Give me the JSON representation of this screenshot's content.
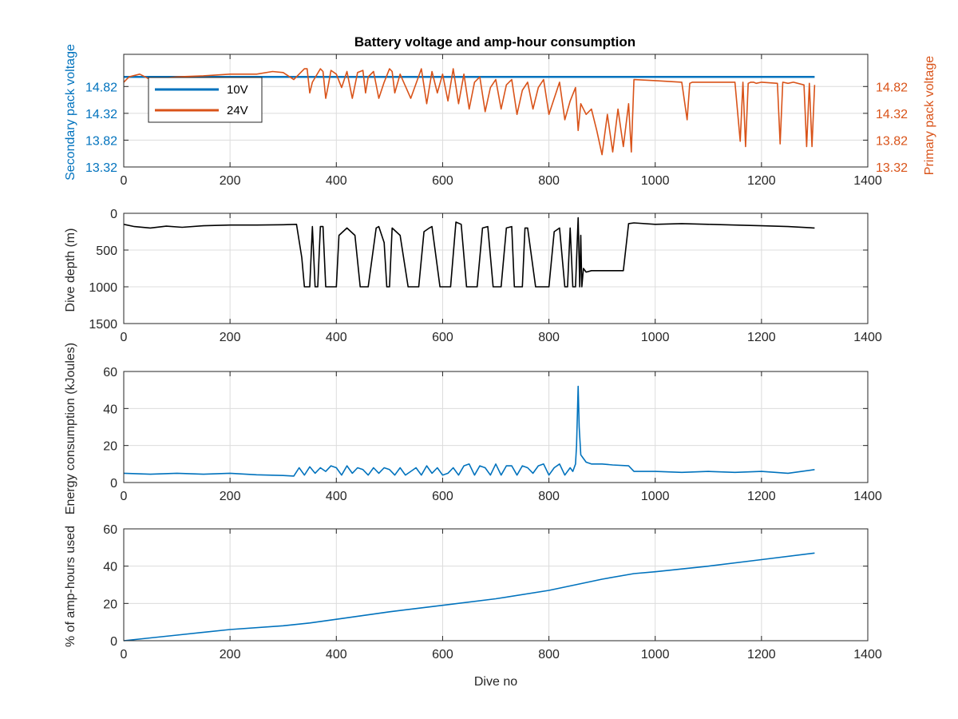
{
  "figure_title": "Battery voltage and amp-hour consumption",
  "chart_data": [
    {
      "type": "line",
      "title": "Battery voltage and amp-hour consumption",
      "xlabel": "",
      "ylabel": "Secondary pack voltage",
      "ylabel_right": "Primary pack voltage",
      "xlim": [
        0,
        1400
      ],
      "ylim": [
        13.32,
        15.42
      ],
      "ylim_right": [
        13.32,
        15.42
      ],
      "xticks": [
        0,
        200,
        400,
        600,
        800,
        1000,
        1200,
        1400
      ],
      "yticks": [
        13.32,
        13.82,
        14.32,
        14.82
      ],
      "yticks_right": [
        13.32,
        13.82,
        14.32,
        14.82
      ],
      "grid": true,
      "legend": {
        "placement": "top-left",
        "entries": [
          "10V",
          "24V"
        ]
      },
      "series": [
        {
          "name": "10V",
          "color": "#0072BD",
          "axis": "left",
          "x": [
            0,
            100,
            200,
            400,
            600,
            800,
            1000,
            1200,
            1300
          ],
          "y": [
            15.0,
            15.0,
            15.0,
            15.0,
            15.0,
            15.0,
            15.0,
            15.0,
            15.0
          ]
        },
        {
          "name": "24V",
          "color": "#D95319",
          "axis": "right",
          "x": [
            0,
            10,
            30,
            50,
            100,
            150,
            200,
            250,
            280,
            300,
            320,
            340,
            345,
            350,
            355,
            370,
            375,
            380,
            385,
            390,
            400,
            410,
            420,
            430,
            440,
            450,
            455,
            460,
            470,
            480,
            490,
            500,
            505,
            510,
            520,
            540,
            560,
            570,
            580,
            590,
            600,
            610,
            620,
            630,
            640,
            650,
            660,
            670,
            680,
            690,
            700,
            710,
            720,
            730,
            740,
            750,
            760,
            770,
            780,
            790,
            800,
            810,
            820,
            830,
            840,
            850,
            855,
            860,
            870,
            880,
            890,
            900,
            910,
            920,
            930,
            940,
            950,
            955,
            960,
            1000,
            1050,
            1060,
            1065,
            1070,
            1100,
            1150,
            1160,
            1165,
            1170,
            1175,
            1180,
            1185,
            1190,
            1200,
            1230,
            1235,
            1240,
            1250,
            1260,
            1280,
            1285,
            1290,
            1295,
            1300
          ],
          "y": [
            14.9,
            15.0,
            15.05,
            14.95,
            15.0,
            15.02,
            15.05,
            15.05,
            15.1,
            15.08,
            14.95,
            15.15,
            15.15,
            14.7,
            14.9,
            15.15,
            15.1,
            14.6,
            14.85,
            15.12,
            15.05,
            14.8,
            15.1,
            14.6,
            15.08,
            15.12,
            14.7,
            15.0,
            15.1,
            14.6,
            14.9,
            15.15,
            15.1,
            14.7,
            15.05,
            14.6,
            15.15,
            14.5,
            15.1,
            14.7,
            15.05,
            14.55,
            15.15,
            14.5,
            15.05,
            14.4,
            14.9,
            15.0,
            14.35,
            14.8,
            14.95,
            14.4,
            14.85,
            14.95,
            14.3,
            14.75,
            14.9,
            14.4,
            14.8,
            14.95,
            14.3,
            14.6,
            14.9,
            14.2,
            14.55,
            14.8,
            14.0,
            14.5,
            14.3,
            14.4,
            14.0,
            13.55,
            14.3,
            13.6,
            14.4,
            13.7,
            14.5,
            13.6,
            14.95,
            14.93,
            14.9,
            14.2,
            14.88,
            14.9,
            14.9,
            14.9,
            13.8,
            14.9,
            13.7,
            14.88,
            14.9,
            14.9,
            14.88,
            14.9,
            14.88,
            13.75,
            14.9,
            14.88,
            14.9,
            14.85,
            13.7,
            14.88,
            13.7,
            14.85
          ]
        }
      ]
    },
    {
      "type": "line",
      "title": "",
      "xlabel": "",
      "ylabel": "Dive depth (m)",
      "xlim": [
        0,
        1400
      ],
      "ylim": [
        0,
        1500
      ],
      "y_reversed": true,
      "xticks": [
        0,
        200,
        400,
        600,
        800,
        1000,
        1200,
        1400
      ],
      "yticks": [
        0,
        500,
        1000,
        1500
      ],
      "grid": true,
      "series": [
        {
          "name": "",
          "color": "#000000",
          "x": [
            0,
            20,
            50,
            80,
            110,
            150,
            200,
            250,
            300,
            325,
            335,
            340,
            350,
            355,
            360,
            365,
            370,
            375,
            380,
            390,
            400,
            405,
            420,
            435,
            445,
            450,
            460,
            475,
            480,
            490,
            495,
            500,
            505,
            520,
            535,
            545,
            555,
            565,
            575,
            580,
            595,
            605,
            615,
            625,
            635,
            645,
            655,
            665,
            675,
            685,
            695,
            700,
            710,
            720,
            730,
            735,
            740,
            750,
            755,
            760,
            775,
            785,
            790,
            800,
            810,
            820,
            830,
            835,
            840,
            845,
            850,
            855,
            858,
            860,
            862,
            865,
            870,
            880,
            900,
            940,
            950,
            960,
            1000,
            1050,
            1100,
            1150,
            1200,
            1250,
            1300
          ],
          "y": [
            150,
            180,
            200,
            175,
            190,
            170,
            160,
            160,
            155,
            150,
            600,
            1000,
            1000,
            180,
            1000,
            1000,
            180,
            180,
            1000,
            1000,
            1000,
            300,
            200,
            300,
            1000,
            1000,
            1000,
            200,
            180,
            400,
            1000,
            1000,
            200,
            300,
            1000,
            1000,
            1000,
            250,
            200,
            180,
            1000,
            1000,
            1000,
            120,
            150,
            1000,
            1000,
            1000,
            200,
            180,
            1000,
            1000,
            1000,
            200,
            180,
            1000,
            1000,
            1000,
            200,
            200,
            1000,
            1000,
            1000,
            1000,
            250,
            200,
            1000,
            1000,
            200,
            1000,
            1000,
            60,
            1000,
            300,
            1000,
            750,
            800,
            780,
            780,
            780,
            140,
            130,
            150,
            140,
            150,
            160,
            170,
            180,
            200
          ]
        }
      ]
    },
    {
      "type": "line",
      "title": "",
      "xlabel": "",
      "ylabel": "Energy consumption (kJoules)",
      "xlim": [
        0,
        1400
      ],
      "ylim": [
        0,
        60
      ],
      "xticks": [
        0,
        200,
        400,
        600,
        800,
        1000,
        1200,
        1400
      ],
      "yticks": [
        0,
        20,
        40,
        60
      ],
      "grid": true,
      "series": [
        {
          "name": "",
          "color": "#0072BD",
          "x": [
            0,
            50,
            100,
            150,
            200,
            250,
            300,
            320,
            330,
            340,
            350,
            360,
            370,
            380,
            390,
            400,
            410,
            420,
            430,
            440,
            450,
            460,
            470,
            480,
            490,
            500,
            510,
            520,
            530,
            540,
            550,
            560,
            570,
            580,
            590,
            600,
            610,
            620,
            630,
            640,
            650,
            660,
            670,
            680,
            690,
            700,
            710,
            720,
            730,
            740,
            750,
            760,
            770,
            780,
            790,
            800,
            810,
            820,
            830,
            840,
            845,
            850,
            852,
            855,
            857,
            860,
            865,
            870,
            880,
            900,
            920,
            950,
            960,
            1000,
            1050,
            1100,
            1150,
            1200,
            1250,
            1300
          ],
          "y": [
            5,
            4.5,
            5,
            4.5,
            5,
            4.2,
            3.8,
            3.5,
            8,
            4,
            8.5,
            5,
            8,
            6,
            9,
            8,
            4,
            9,
            5,
            8,
            7,
            4,
            8,
            5,
            8,
            7,
            4,
            8,
            4,
            6,
            8,
            4,
            9,
            5,
            8,
            4,
            5,
            8,
            4,
            9,
            10,
            4,
            9,
            8,
            4,
            10,
            4,
            9,
            9,
            4,
            9,
            8,
            5,
            9,
            10,
            4,
            8,
            10,
            4,
            8,
            6,
            10,
            20,
            52,
            30,
            15,
            13,
            11,
            10,
            10,
            9.5,
            9,
            6,
            6,
            5.5,
            6,
            5.5,
            6,
            5,
            7
          ]
        }
      ]
    },
    {
      "type": "line",
      "title": "",
      "xlabel": "Dive no",
      "ylabel": "% of amp-hours used",
      "xlim": [
        0,
        1400
      ],
      "ylim": [
        0,
        60
      ],
      "xticks": [
        0,
        200,
        400,
        600,
        800,
        1000,
        1200,
        1400
      ],
      "yticks": [
        0,
        20,
        40,
        60
      ],
      "grid": true,
      "series": [
        {
          "name": "",
          "color": "#0072BD",
          "x": [
            0,
            100,
            200,
            300,
            350,
            400,
            500,
            600,
            700,
            800,
            850,
            900,
            960,
            1000,
            1100,
            1200,
            1300
          ],
          "y": [
            0,
            3,
            6,
            8,
            9.5,
            11.5,
            15.5,
            19,
            22.5,
            27,
            30,
            33,
            36,
            37,
            40,
            43.5,
            47
          ]
        }
      ]
    }
  ]
}
